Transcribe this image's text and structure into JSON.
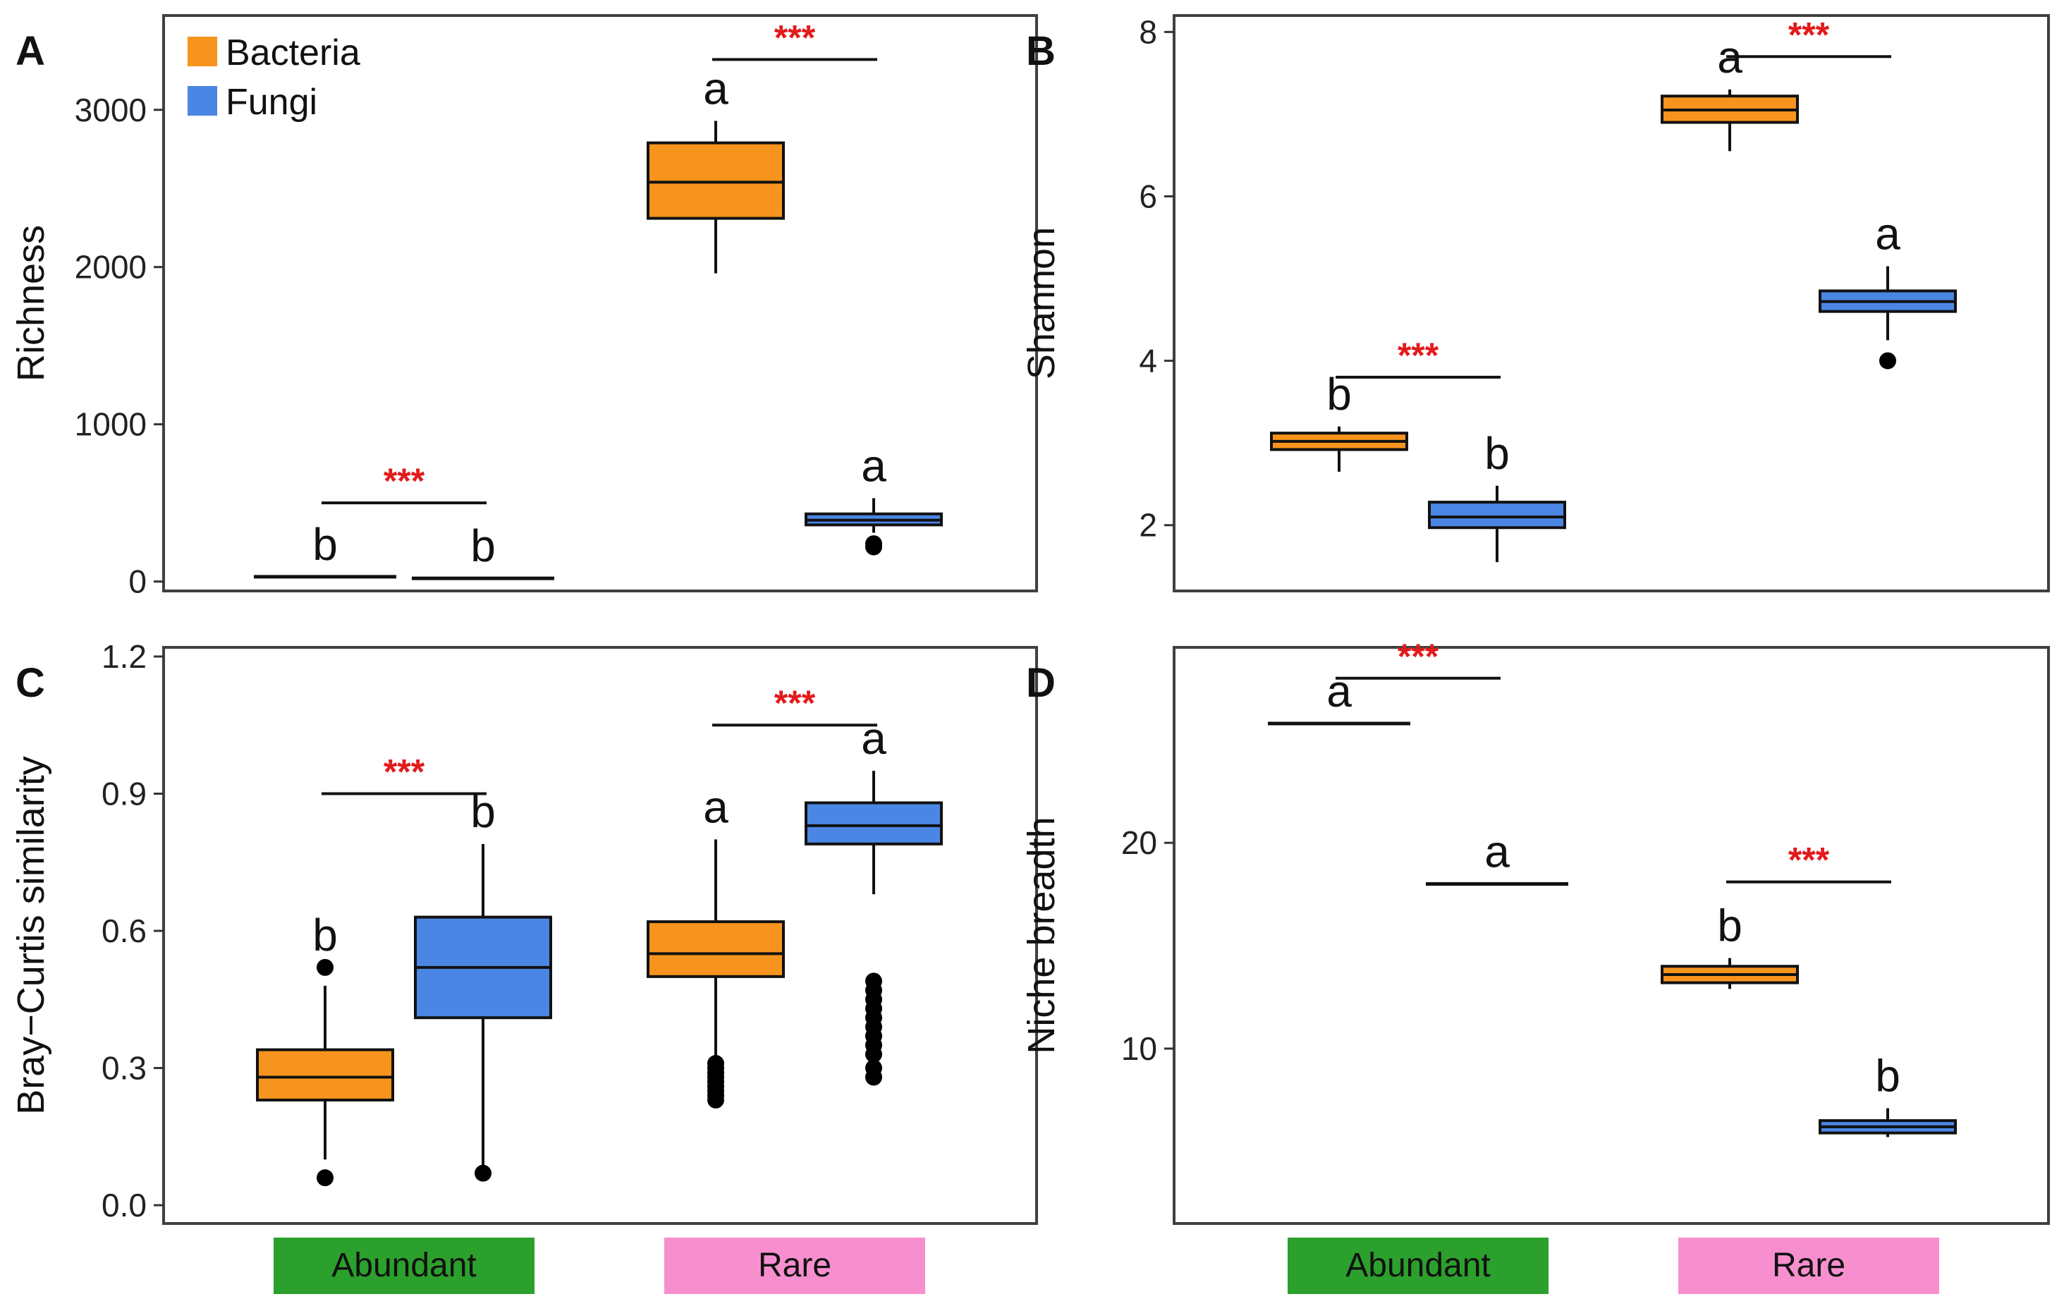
{
  "legend": {
    "items": [
      {
        "name": "Bacteria",
        "color": "#f7941d"
      },
      {
        "name": "Fungi",
        "color": "#4c86e4"
      }
    ]
  },
  "colors": {
    "bacteria": "#f7941d",
    "fungi": "#4c86e4",
    "abundant_bar": "#2ca02c",
    "rare_bar": "#f78fcf",
    "significance": "#e31a1c"
  },
  "groups": {
    "abundant": "Abundant",
    "rare": "Rare"
  },
  "chart_data": [
    {
      "panel": "A",
      "type": "boxplot",
      "ylabel": "Richness",
      "ylim": [
        -60,
        3600
      ],
      "yticks": [
        0,
        1000,
        2000,
        3000
      ],
      "ytick_labels": [
        "0",
        "1000",
        "2000",
        "3000"
      ],
      "categories": [
        "Abundant",
        "Rare"
      ],
      "series": [
        {
          "name": "Bacteria",
          "boxes": [
            {
              "group": "Abundant",
              "min": 30,
              "q1": 30,
              "median": 30,
              "q3": 30,
              "max": 30,
              "outliers": [],
              "letter": "b"
            },
            {
              "group": "Rare",
              "min": 1960,
              "q1": 2310,
              "median": 2540,
              "q3": 2790,
              "max": 2930,
              "outliers": [],
              "letter": "a"
            }
          ]
        },
        {
          "name": "Fungi",
          "boxes": [
            {
              "group": "Abundant",
              "min": 20,
              "q1": 20,
              "median": 20,
              "q3": 20,
              "max": 20,
              "outliers": [],
              "letter": "b"
            },
            {
              "group": "Rare",
              "min": 310,
              "q1": 360,
              "median": 390,
              "q3": 430,
              "max": 530,
              "outliers": [
                220,
                240
              ],
              "letter": "a"
            }
          ]
        }
      ],
      "significance": [
        {
          "group": "Abundant",
          "label": "***",
          "y": 500
        },
        {
          "group": "Rare",
          "label": "***",
          "y": 3320
        }
      ]
    },
    {
      "panel": "B",
      "type": "boxplot",
      "ylabel": "Shannon",
      "ylim": [
        1.2,
        8.2
      ],
      "yticks": [
        2,
        4,
        6,
        8
      ],
      "ytick_labels": [
        "2",
        "4",
        "6",
        "8"
      ],
      "categories": [
        "Abundant",
        "Rare"
      ],
      "series": [
        {
          "name": "Bacteria",
          "boxes": [
            {
              "group": "Abundant",
              "min": 2.65,
              "q1": 2.92,
              "median": 3.02,
              "q3": 3.12,
              "max": 3.2,
              "outliers": [],
              "letter": "b"
            },
            {
              "group": "Rare",
              "min": 6.55,
              "q1": 6.9,
              "median": 7.05,
              "q3": 7.22,
              "max": 7.3,
              "outliers": [],
              "letter": "a"
            }
          ]
        },
        {
          "name": "Fungi",
          "boxes": [
            {
              "group": "Abundant",
              "min": 1.55,
              "q1": 1.97,
              "median": 2.1,
              "q3": 2.28,
              "max": 2.48,
              "outliers": [],
              "letter": "b"
            },
            {
              "group": "Rare",
              "min": 4.25,
              "q1": 4.6,
              "median": 4.72,
              "q3": 4.85,
              "max": 5.15,
              "outliers": [
                4.0
              ],
              "letter": "a"
            }
          ]
        }
      ],
      "significance": [
        {
          "group": "Abundant",
          "label": "***",
          "y": 3.8
        },
        {
          "group": "Rare",
          "label": "***",
          "y": 7.7
        }
      ]
    },
    {
      "panel": "C",
      "type": "boxplot",
      "ylabel": "Bray−Curtis similarity",
      "ylim": [
        -0.04,
        1.22
      ],
      "yticks": [
        0.0,
        0.3,
        0.6,
        0.9,
        1.2
      ],
      "ytick_labels": [
        "0.0",
        "0.3",
        "0.6",
        "0.9",
        "1.2"
      ],
      "categories": [
        "Abundant",
        "Rare"
      ],
      "series": [
        {
          "name": "Bacteria",
          "boxes": [
            {
              "group": "Abundant",
              "min": 0.1,
              "q1": 0.23,
              "median": 0.28,
              "q3": 0.34,
              "max": 0.48,
              "outliers": [
                0.52,
                0.06
              ],
              "letter": "b"
            },
            {
              "group": "Rare",
              "min": 0.32,
              "q1": 0.5,
              "median": 0.55,
              "q3": 0.62,
              "max": 0.8,
              "outliers": [
                0.31,
                0.3,
                0.29,
                0.28,
                0.27,
                0.26,
                0.25,
                0.24,
                0.23
              ],
              "letter": "a"
            }
          ]
        },
        {
          "name": "Fungi",
          "boxes": [
            {
              "group": "Abundant",
              "min": 0.07,
              "q1": 0.41,
              "median": 0.52,
              "q3": 0.63,
              "max": 0.79,
              "outliers": [
                0.07
              ],
              "letter": "b"
            },
            {
              "group": "Rare",
              "min": 0.68,
              "q1": 0.79,
              "median": 0.83,
              "q3": 0.88,
              "max": 0.95,
              "outliers": [
                0.49,
                0.47,
                0.45,
                0.43,
                0.41,
                0.39,
                0.37,
                0.35,
                0.33,
                0.3,
                0.28
              ],
              "letter": "a"
            }
          ]
        }
      ],
      "significance": [
        {
          "group": "Abundant",
          "label": "***",
          "y": 0.9
        },
        {
          "group": "Rare",
          "label": "***",
          "y": 1.05
        }
      ]
    },
    {
      "panel": "D",
      "type": "boxplot",
      "ylabel": "Niche breadth",
      "ylim": [
        1.5,
        29.5
      ],
      "yticks": [
        10,
        20
      ],
      "ytick_labels": [
        "10",
        "20"
      ],
      "categories": [
        "Abundant",
        "Rare"
      ],
      "series": [
        {
          "name": "Bacteria",
          "boxes": [
            {
              "group": "Abundant",
              "min": 25.8,
              "q1": 25.8,
              "median": 25.8,
              "q3": 25.8,
              "max": 25.8,
              "outliers": [],
              "letter": "a"
            },
            {
              "group": "Rare",
              "min": 12.9,
              "q1": 13.2,
              "median": 13.6,
              "q3": 14.0,
              "max": 14.4,
              "outliers": [],
              "letter": "b"
            }
          ]
        },
        {
          "name": "Fungi",
          "boxes": [
            {
              "group": "Abundant",
              "min": 18.0,
              "q1": 18.0,
              "median": 18.0,
              "q3": 18.0,
              "max": 18.0,
              "outliers": [],
              "letter": "a"
            },
            {
              "group": "Rare",
              "min": 5.7,
              "q1": 5.9,
              "median": 6.2,
              "q3": 6.5,
              "max": 7.1,
              "outliers": [],
              "letter": "b"
            }
          ]
        }
      ],
      "significance": [
        {
          "group": "Abundant",
          "label": "***",
          "y": 28.0
        },
        {
          "group": "Rare",
          "label": "***",
          "y": 18.1
        }
      ]
    }
  ]
}
